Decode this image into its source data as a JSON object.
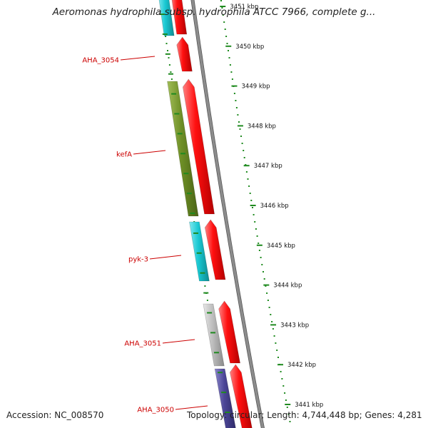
{
  "title": "Aeromonas hydrophila subsp. hydrophila ATCC 7966, complete g...",
  "footer": {
    "accession": "Accession: NC_008570",
    "summary": "Topology: circular; Length: 4,744,448 bp; Genes: 4,281"
  },
  "colors": {
    "backbone": "#8c8c8c",
    "forward_cds": "#ff1a1a",
    "cyan_feature": "#19c8d2",
    "green_feature": "#6e8f26",
    "gray_feature": "#bdbdbd",
    "purple_feature": "#4b4596",
    "label": "#cc0000",
    "ruler": "#1f8a1f"
  },
  "ruler": {
    "ticks": [
      "3451 kbp",
      "3450 kbp",
      "3449 kbp",
      "3448 kbp",
      "3447 kbp",
      "3446 kbp",
      "3445 kbp",
      "3444 kbp",
      "3443 kbp",
      "3442 kbp",
      "3441 kbp"
    ]
  },
  "gene_labels": [
    {
      "name": "AHA_3054"
    },
    {
      "name": "kefA"
    },
    {
      "name": "pyk-3"
    },
    {
      "name": "AHA_3051"
    },
    {
      "name": "AHA_3050"
    }
  ]
}
